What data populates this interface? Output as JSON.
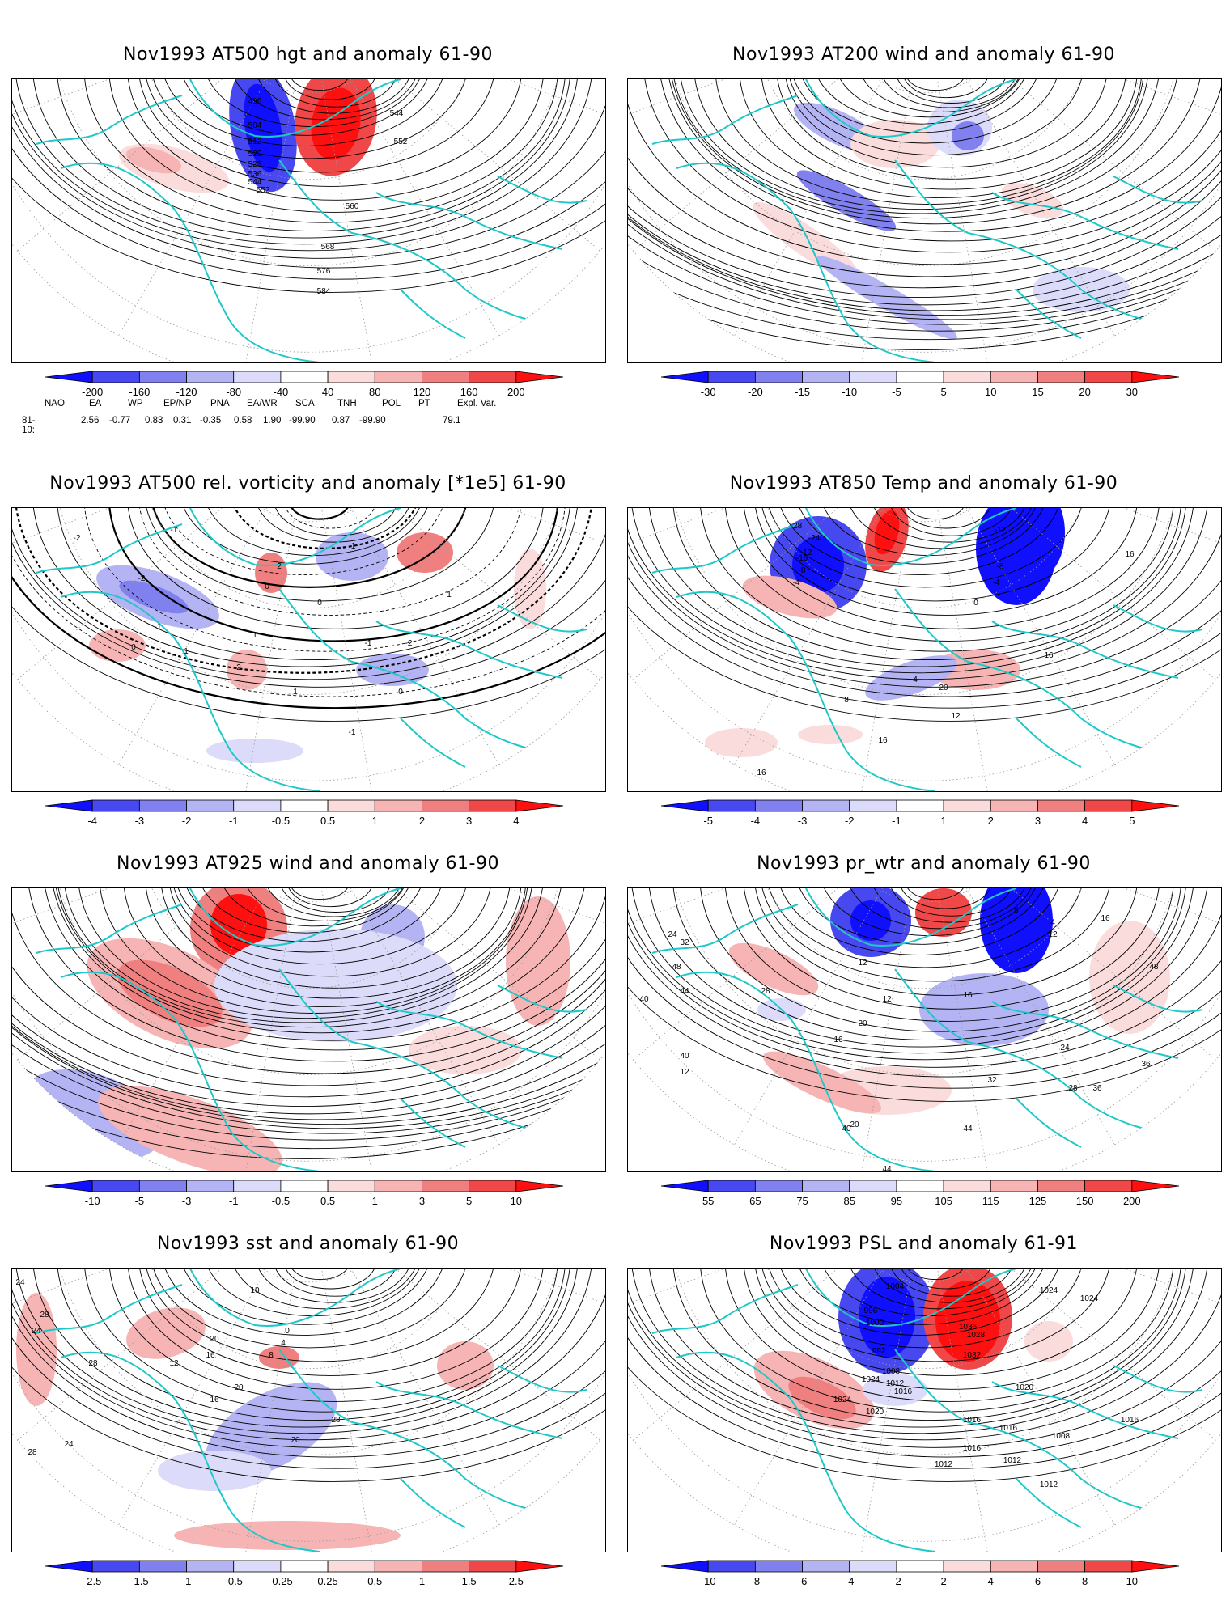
{
  "colors": {
    "coast": "#1ec8c8",
    "neg": [
      "#1010ff",
      "#4848f0",
      "#8080ee",
      "#b4b4f4",
      "#dcdcfa"
    ],
    "pos": [
      "#fadcdc",
      "#f6b4b4",
      "#f08080",
      "#f04848",
      "#ff1010"
    ]
  },
  "panels": [
    {
      "title": "Nov1993 AT500 hgt and anomaly 61-90",
      "colorbar": [
        "-200",
        "-160",
        "-120",
        "-80",
        "-40",
        "40",
        "80",
        "120",
        "160",
        "200"
      ],
      "labels": [
        "496",
        "504",
        "512",
        "520",
        "528",
        "536",
        "544",
        "552",
        "560",
        "568",
        "576",
        "584",
        "544",
        "552"
      ]
    },
    {
      "title": "Nov1993 AT200 wind and anomaly 61-90",
      "colorbar": [
        "-30",
        "-20",
        "-15",
        "-10",
        "-5",
        "5",
        "10",
        "15",
        "20",
        "30"
      ],
      "labels": []
    },
    {
      "title": "Nov1993 AT500 rel. vorticity and anomaly [*1e5] 61-90",
      "colorbar": [
        "-4",
        "-3",
        "-2",
        "-1",
        "-0.5",
        "0.5",
        "1",
        "2",
        "3",
        "4"
      ],
      "labels": [
        "-2",
        "-1",
        "0",
        "1",
        "2",
        "-2",
        "-1",
        "0",
        "1",
        "2",
        "-1",
        "0",
        "-1",
        "1",
        "0",
        "-1",
        "-2",
        "1"
      ]
    },
    {
      "title": "Nov1993 AT850 Temp and anomaly 61-90",
      "colorbar": [
        "-5",
        "-4",
        "-3",
        "-2",
        "-1",
        "1",
        "2",
        "3",
        "4",
        "5"
      ],
      "labels": [
        "-28",
        "-24",
        "-16",
        "-12",
        "-8",
        "-4",
        "0",
        "4",
        "8",
        "12",
        "16",
        "20",
        "16",
        "-12",
        "-8",
        "-4",
        "16",
        "16"
      ]
    },
    {
      "title": "Nov1993 AT925 wind and anomaly 61-90",
      "colorbar": [
        "-10",
        "-5",
        "-3",
        "-1",
        "-0.5",
        "0.5",
        "1",
        "3",
        "5",
        "10"
      ],
      "labels": []
    },
    {
      "title": "Nov1993 pr_wtr and anomaly 61-90",
      "colorbar": [
        "55",
        "65",
        "75",
        "85",
        "95",
        "105",
        "115",
        "125",
        "150",
        "200"
      ],
      "labels": [
        "24",
        "32",
        "40",
        "48",
        "44",
        "40",
        "28",
        "12",
        "16",
        "20",
        "12",
        "16",
        "24",
        "32",
        "36",
        "40",
        "44",
        "8",
        "4",
        "12",
        "16",
        "48",
        "36",
        "28",
        "20",
        "12",
        "44",
        "44"
      ]
    },
    {
      "title": "Nov1993 sst and anomaly 61-90",
      "colorbar": [
        "-2.5",
        "-1.5",
        "-1",
        "-0.5",
        "-0.25",
        "0.25",
        "0.5",
        "1",
        "1.5",
        "2.5"
      ],
      "labels": [
        "24",
        "28",
        "24",
        "20",
        "16",
        "12",
        "8",
        "4",
        "0",
        "28",
        "24",
        "28",
        "20",
        "16",
        "10",
        "20",
        "28"
      ]
    },
    {
      "title": "Nov1993 PSL and anomaly 61-91",
      "colorbar": [
        "-10",
        "-8",
        "-6",
        "-4",
        "-2",
        "2",
        "4",
        "6",
        "8",
        "10"
      ],
      "labels": [
        "1004",
        "996",
        "1000",
        "992",
        "1008",
        "1012",
        "1016",
        "1020",
        "1024",
        "1036",
        "1032",
        "1028",
        "1024",
        "1020",
        "1016",
        "1012",
        "1024",
        "1016",
        "1016",
        "1008",
        "1012",
        "1012",
        "1016",
        "1024"
      ]
    }
  ],
  "indices": {
    "header": [
      "NAO",
      "EA",
      "WP",
      "EP/NP",
      "PNA",
      "EA/WR",
      "SCA",
      "TNH",
      "POL",
      "PT",
      "Expl. Var."
    ],
    "period": "81-10:",
    "values": [
      "2.56",
      "-0.77",
      "0.83",
      "0.31",
      "-0.35",
      "0.58",
      "1.90",
      "-99.90",
      "0.87",
      "-99.90",
      "79.1"
    ]
  }
}
